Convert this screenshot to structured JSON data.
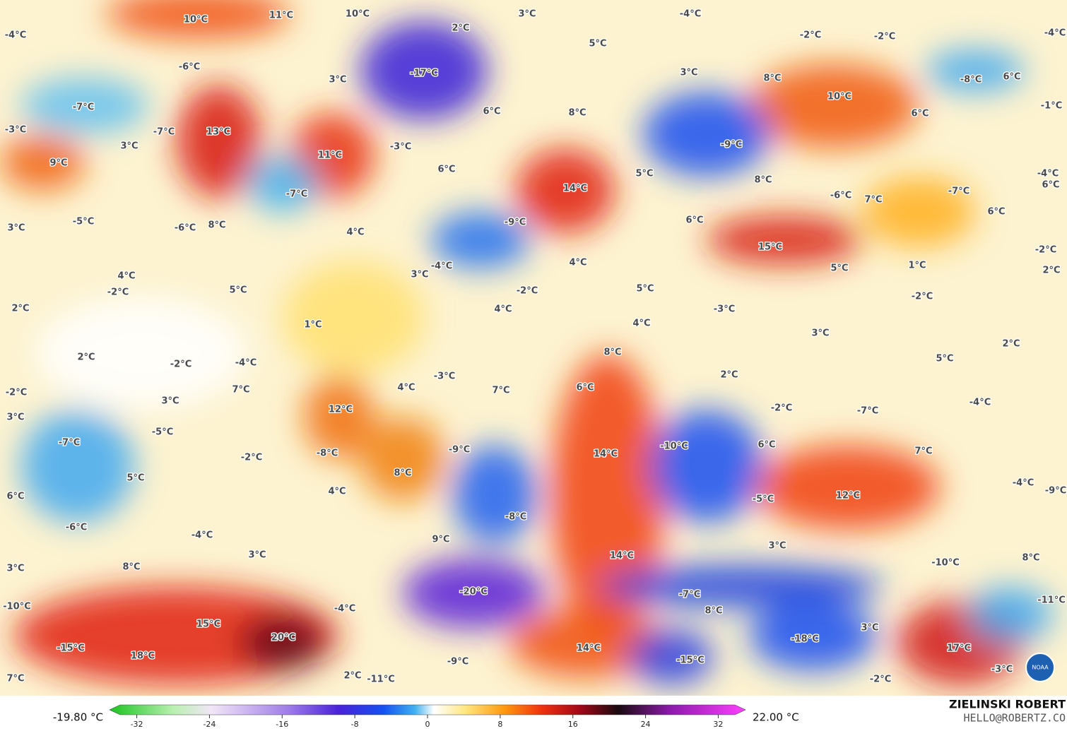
{
  "map": {
    "labels": [
      "10°C",
      "11°C",
      "10°C",
      "3°C",
      "-4°C",
      "2°C",
      "-4°C",
      "-2°C",
      "-2°C",
      "-4°C",
      "-6°C",
      "5°C",
      "-17°C",
      "3°C",
      "3°C",
      "8°C",
      "-8°C",
      "6°C",
      "-7°C",
      "10°C",
      "6°C",
      "8°C",
      "-1°C",
      "6°C",
      "-3°C",
      "-7°C",
      "13°C",
      "-9°C",
      "3°C",
      "11°C",
      "-3°C",
      "9°C",
      "6°C",
      "5°C",
      "-4°C",
      "8°C",
      "14°C",
      "6°C",
      "-7°C",
      "-6°C",
      "7°C",
      "-7°C",
      "-5°C",
      "-6°C",
      "8°C",
      "3°C",
      "-9°C",
      "6°C",
      "6°C",
      "4°C",
      "15°C",
      "-2°C",
      "-4°C",
      "4°C",
      "1°C",
      "2°C",
      "4°C",
      "3°C",
      "5°C",
      "-2°C",
      "5°C",
      "-2°C",
      "5°C",
      "-2°C",
      "2°C",
      "4°C",
      "-3°C",
      "1°C",
      "4°C",
      "3°C",
      "2°C",
      "2°C",
      "8°C",
      "-2°C",
      "-4°C",
      "5°C",
      "-3°C",
      "2°C",
      "-2°C",
      "7°C",
      "4°C",
      "6°C",
      "7°C",
      "3°C",
      "-4°C",
      "12°C",
      "-2°C",
      "-7°C",
      "3°C",
      "-5°C",
      "-7°C",
      "-9°C",
      "-10°C",
      "6°C",
      "7°C",
      "-8°C",
      "14°C",
      "-2°C",
      "5°C",
      "8°C",
      "-4°C",
      "-9°C",
      "6°C",
      "4°C",
      "12°C",
      "-5°C",
      "-8°C",
      "-6°C",
      "-4°C",
      "9°C",
      "3°C",
      "3°C",
      "14°C",
      "8°C",
      "-10°C",
      "8°C",
      "3°C",
      "-20°C",
      "-7°C",
      "-11°C",
      "-10°C",
      "-4°C",
      "8°C",
      "15°C",
      "3°C",
      "20°C",
      "-18°C",
      "-15°C",
      "14°C",
      "17°C",
      "18°C",
      "-15°C",
      "-9°C",
      "-3°C",
      "7°C",
      "2°C",
      "-11°C",
      "-2°C"
    ]
  },
  "colorbar": {
    "range": [
      -35,
      35
    ],
    "ticks": [
      -32,
      -24,
      -16,
      -8,
      0,
      8,
      16,
      24,
      32
    ],
    "min_label": "-19.80 °C",
    "max_label": "22.00 °C"
  },
  "credits": {
    "author": "ZIELINSKI ROBERT",
    "email": "HELLO@ROBERTZ.CO",
    "logo": "NOAA"
  }
}
